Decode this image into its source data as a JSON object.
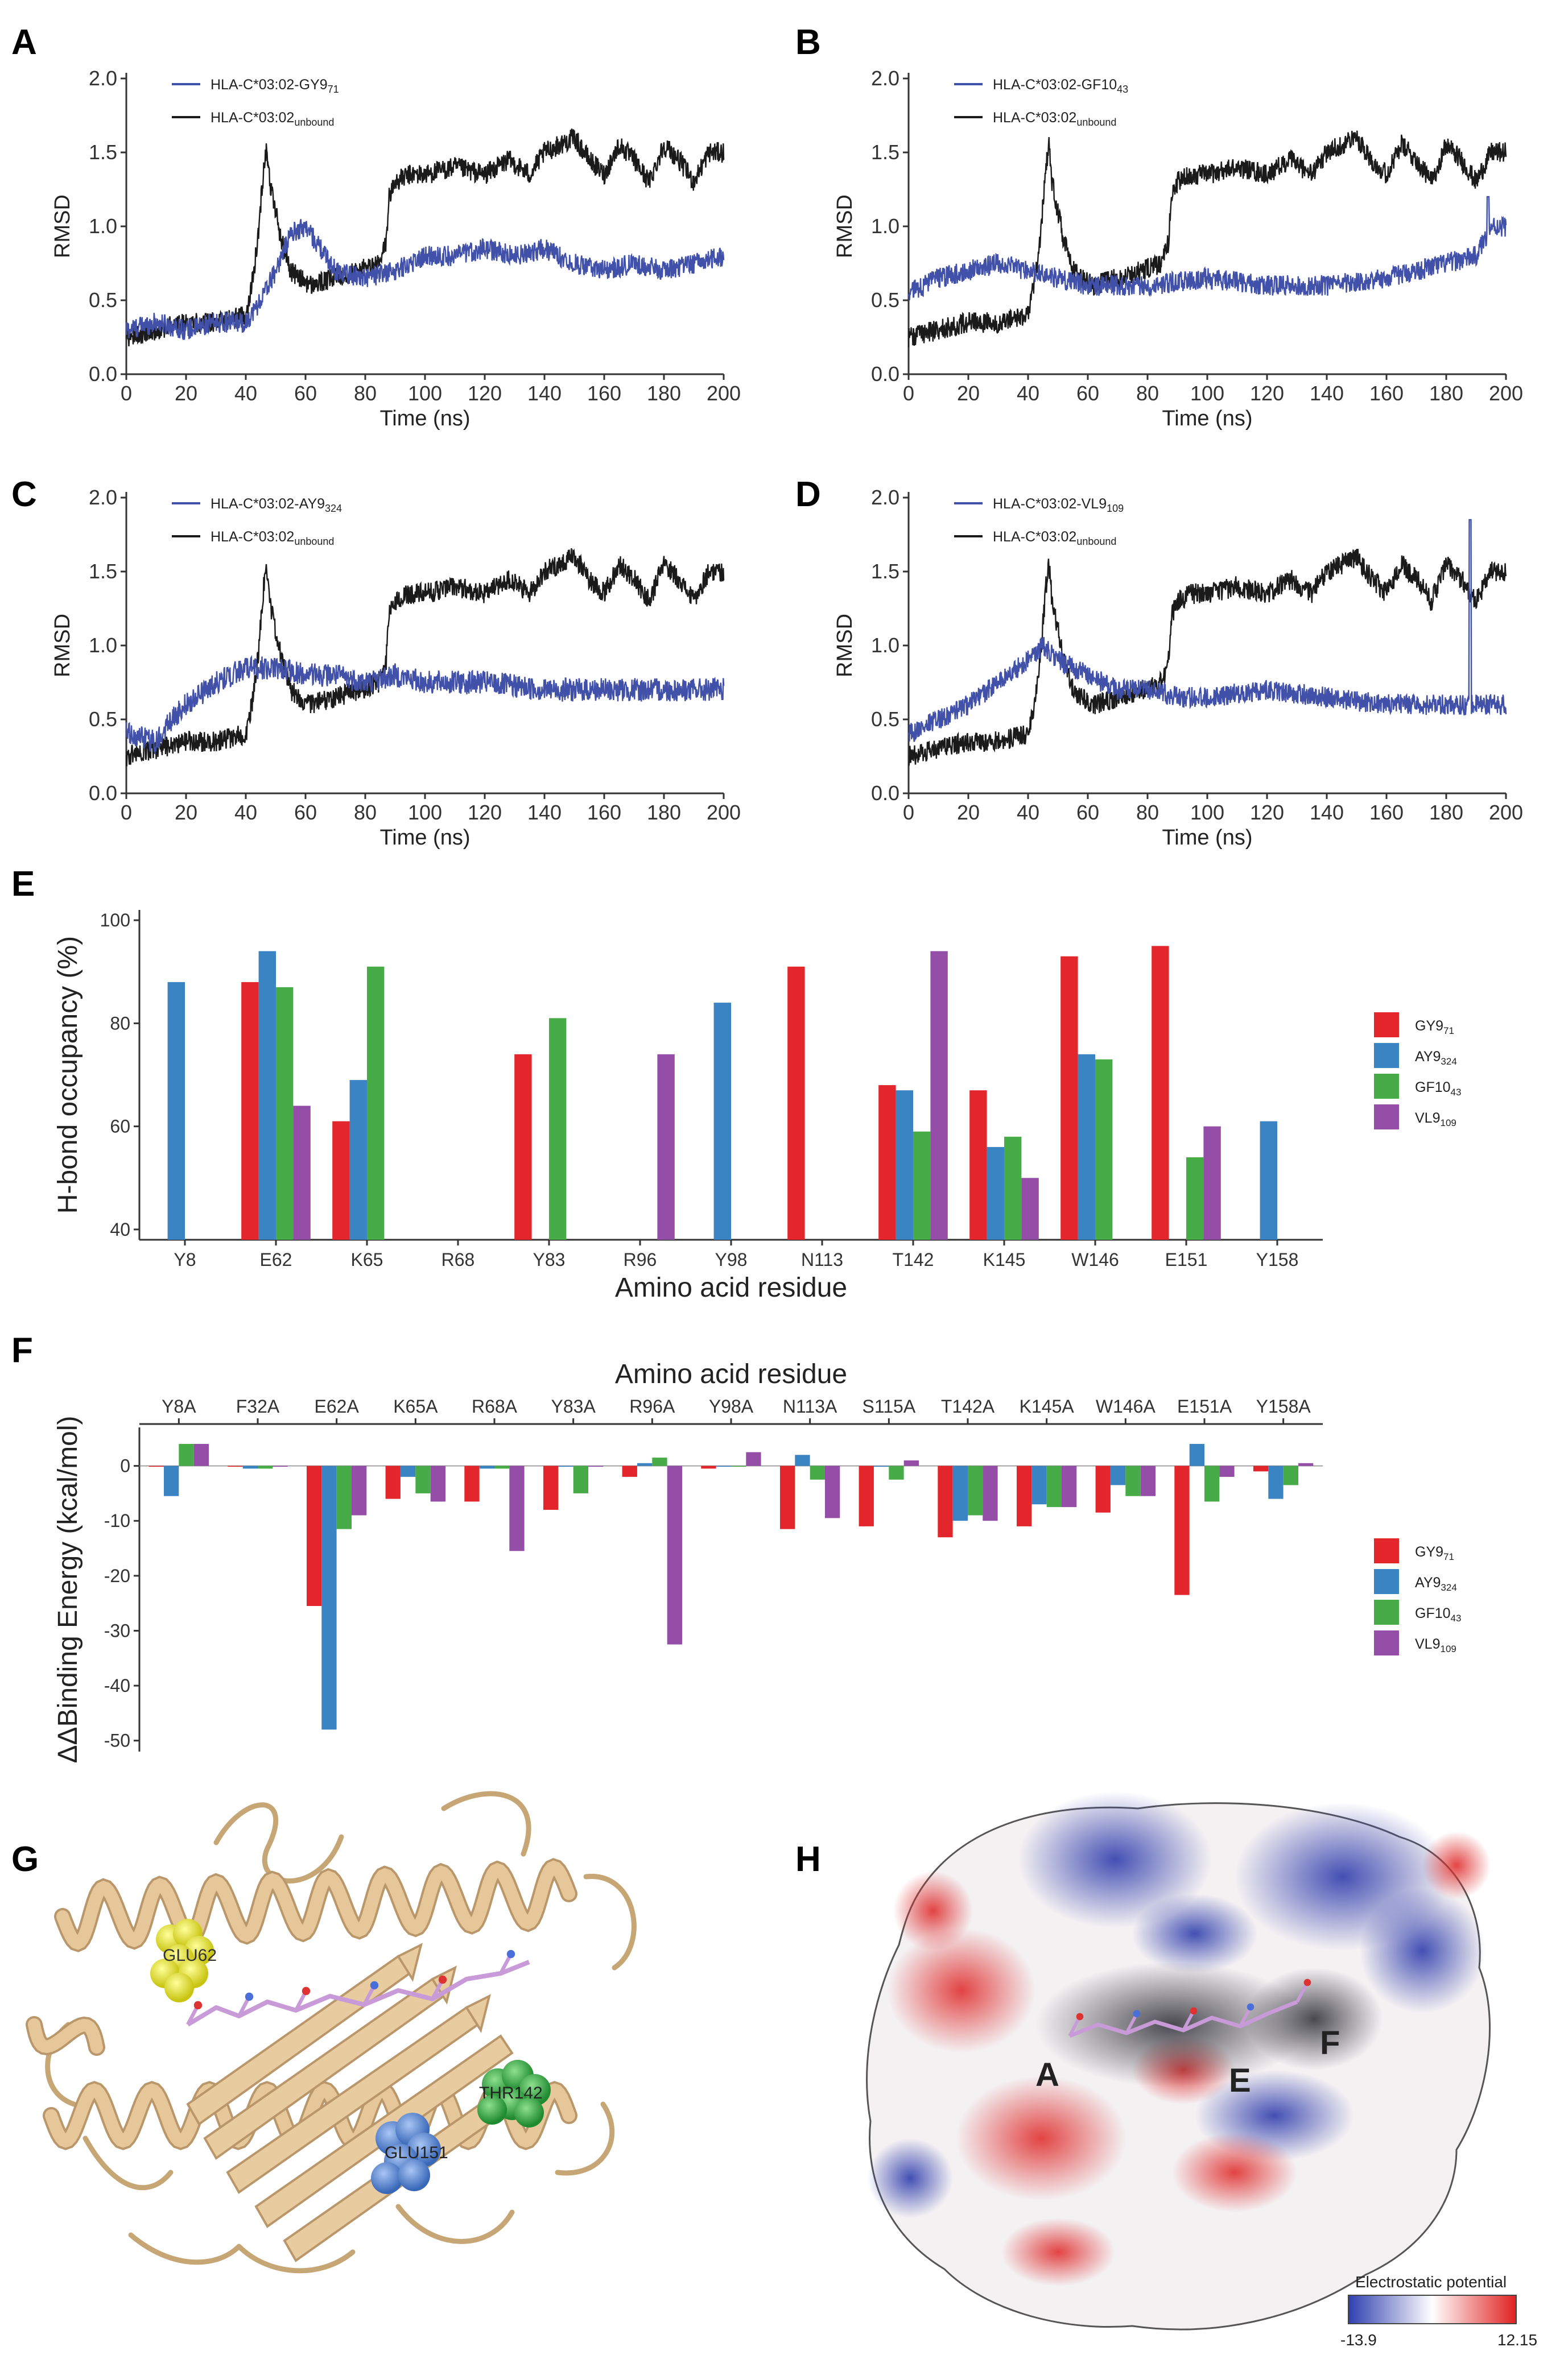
{
  "figure": {
    "panel_letters": [
      "A",
      "B",
      "C",
      "D",
      "E",
      "F",
      "G",
      "H"
    ]
  },
  "colors": {
    "bound": "#4150a8",
    "unbound": "#1a1a1a",
    "GY9": "#e3262b",
    "AY9": "#3a84c4",
    "GF10": "#47ab47",
    "VL9": "#944ea8",
    "ribbon": "#e6c79a",
    "peptide": "#c99ad8",
    "glu62": "#f2ee22",
    "glu151": "#5c8fd8",
    "thr142": "#36a84a"
  },
  "rmsd_panels": [
    {
      "letter": "A",
      "type": "line",
      "legend_bound": {
        "base": "HLA-C*03:02-GY9",
        "sub": "71"
      },
      "legend_unbound": {
        "base": "HLA-C*03:02",
        "sub": "unbound"
      },
      "ylabel": "RMSD",
      "xlabel": "Time (ns)",
      "xlim": [
        0,
        200
      ],
      "ylim": [
        0,
        2.0
      ],
      "xticks": [
        "0",
        "20",
        "40",
        "60",
        "80",
        "100",
        "120",
        "140",
        "160",
        "180",
        "200"
      ],
      "yticks": [
        "0.0",
        "0.5",
        "1.0",
        "1.5",
        "2.0"
      ],
      "bound_profile": [
        [
          0,
          0.3
        ],
        [
          10,
          0.35
        ],
        [
          20,
          0.3
        ],
        [
          30,
          0.35
        ],
        [
          40,
          0.35
        ],
        [
          45,
          0.5
        ],
        [
          50,
          0.7
        ],
        [
          55,
          0.95
        ],
        [
          60,
          1.0
        ],
        [
          65,
          0.85
        ],
        [
          70,
          0.7
        ],
        [
          80,
          0.65
        ],
        [
          90,
          0.7
        ],
        [
          100,
          0.8
        ],
        [
          110,
          0.8
        ],
        [
          120,
          0.85
        ],
        [
          130,
          0.8
        ],
        [
          140,
          0.85
        ],
        [
          150,
          0.75
        ],
        [
          160,
          0.7
        ],
        [
          170,
          0.75
        ],
        [
          180,
          0.7
        ],
        [
          190,
          0.75
        ],
        [
          200,
          0.8
        ]
      ],
      "bound_noise": 0.07,
      "bound_spikes": []
    },
    {
      "letter": "B",
      "type": "line",
      "legend_bound": {
        "base": "HLA-C*03:02-GF10",
        "sub": "43"
      },
      "legend_unbound": {
        "base": "HLA-C*03:02",
        "sub": "unbound"
      },
      "ylabel": "RMSD",
      "xlabel": "Time (ns)",
      "xlim": [
        0,
        200
      ],
      "ylim": [
        0,
        2.0
      ],
      "xticks": [
        "0",
        "20",
        "40",
        "60",
        "80",
        "100",
        "120",
        "140",
        "160",
        "180",
        "200"
      ],
      "yticks": [
        "0.0",
        "0.5",
        "1.0",
        "1.5",
        "2.0"
      ],
      "bound_profile": [
        [
          0,
          0.55
        ],
        [
          10,
          0.65
        ],
        [
          20,
          0.7
        ],
        [
          30,
          0.75
        ],
        [
          40,
          0.7
        ],
        [
          50,
          0.65
        ],
        [
          60,
          0.6
        ],
        [
          80,
          0.6
        ],
        [
          100,
          0.65
        ],
        [
          120,
          0.6
        ],
        [
          140,
          0.6
        ],
        [
          160,
          0.65
        ],
        [
          180,
          0.75
        ],
        [
          190,
          0.8
        ],
        [
          195,
          1.0
        ],
        [
          200,
          1.0
        ]
      ],
      "bound_noise": 0.07,
      "bound_spikes": [
        [
          194,
          1.2
        ]
      ]
    },
    {
      "letter": "C",
      "type": "line",
      "legend_bound": {
        "base": "HLA-C*03:02-AY9",
        "sub": "324"
      },
      "legend_unbound": {
        "base": "HLA-C*03:02",
        "sub": "unbound"
      },
      "ylabel": "RMSD",
      "xlabel": "Time (ns)",
      "xlim": [
        0,
        200
      ],
      "ylim": [
        0,
        2.0
      ],
      "xticks": [
        "0",
        "20",
        "40",
        "60",
        "80",
        "100",
        "120",
        "140",
        "160",
        "180",
        "200"
      ],
      "yticks": [
        "0.0",
        "0.5",
        "1.0",
        "1.5",
        "2.0"
      ],
      "bound_profile": [
        [
          0,
          0.4
        ],
        [
          10,
          0.35
        ],
        [
          15,
          0.5
        ],
        [
          20,
          0.6
        ],
        [
          30,
          0.75
        ],
        [
          40,
          0.85
        ],
        [
          50,
          0.85
        ],
        [
          60,
          0.8
        ],
        [
          70,
          0.8
        ],
        [
          80,
          0.75
        ],
        [
          90,
          0.8
        ],
        [
          100,
          0.75
        ],
        [
          120,
          0.75
        ],
        [
          140,
          0.7
        ],
        [
          160,
          0.7
        ],
        [
          180,
          0.7
        ],
        [
          200,
          0.7
        ]
      ],
      "bound_noise": 0.08,
      "bound_spikes": []
    },
    {
      "letter": "D",
      "type": "line",
      "legend_bound": {
        "base": "HLA-C*03:02-VL9",
        "sub": "109"
      },
      "legend_unbound": {
        "base": "HLA-C*03:02",
        "sub": "unbound"
      },
      "ylabel": "RMSD",
      "xlabel": "Time (ns)",
      "xlim": [
        0,
        200
      ],
      "ylim": [
        0,
        2.0
      ],
      "xticks": [
        "0",
        "20",
        "40",
        "60",
        "80",
        "100",
        "120",
        "140",
        "160",
        "180",
        "200"
      ],
      "yticks": [
        "0.0",
        "0.5",
        "1.0",
        "1.5",
        "2.0"
      ],
      "bound_profile": [
        [
          0,
          0.4
        ],
        [
          10,
          0.5
        ],
        [
          20,
          0.6
        ],
        [
          30,
          0.75
        ],
        [
          40,
          0.9
        ],
        [
          45,
          1.0
        ],
        [
          50,
          0.9
        ],
        [
          60,
          0.8
        ],
        [
          70,
          0.7
        ],
        [
          80,
          0.7
        ],
        [
          90,
          0.65
        ],
        [
          100,
          0.65
        ],
        [
          120,
          0.7
        ],
        [
          140,
          0.65
        ],
        [
          160,
          0.6
        ],
        [
          180,
          0.6
        ],
        [
          200,
          0.6
        ]
      ],
      "bound_noise": 0.07,
      "bound_spikes": [
        [
          188,
          1.85
        ]
      ]
    }
  ],
  "unbound_profile": [
    [
      0,
      0.25
    ],
    [
      10,
      0.3
    ],
    [
      20,
      0.35
    ],
    [
      30,
      0.35
    ],
    [
      40,
      0.4
    ],
    [
      42,
      0.6
    ],
    [
      44,
      0.9
    ],
    [
      46,
      1.4
    ],
    [
      47,
      1.55
    ],
    [
      48,
      1.3
    ],
    [
      50,
      1.1
    ],
    [
      52,
      0.9
    ],
    [
      55,
      0.7
    ],
    [
      58,
      0.65
    ],
    [
      62,
      0.6
    ],
    [
      70,
      0.65
    ],
    [
      78,
      0.7
    ],
    [
      85,
      0.75
    ],
    [
      87,
      0.9
    ],
    [
      88,
      1.2
    ],
    [
      90,
      1.3
    ],
    [
      95,
      1.35
    ],
    [
      100,
      1.35
    ],
    [
      110,
      1.4
    ],
    [
      120,
      1.35
    ],
    [
      128,
      1.45
    ],
    [
      135,
      1.35
    ],
    [
      140,
      1.5
    ],
    [
      145,
      1.55
    ],
    [
      150,
      1.6
    ],
    [
      155,
      1.45
    ],
    [
      160,
      1.35
    ],
    [
      165,
      1.55
    ],
    [
      170,
      1.45
    ],
    [
      175,
      1.3
    ],
    [
      180,
      1.55
    ],
    [
      185,
      1.45
    ],
    [
      190,
      1.3
    ],
    [
      195,
      1.5
    ],
    [
      200,
      1.5
    ]
  ],
  "chart_data": [
    {
      "type": "bar",
      "panel": "E",
      "ylabel": "H-bond occupancy (%)",
      "xlabel": "Amino acid residue",
      "ylim": [
        38,
        102
      ],
      "yticks": [
        "40",
        "60",
        "80",
        "100"
      ],
      "categories": [
        "Y8",
        "E62",
        "K65",
        "R68",
        "Y83",
        "R96",
        "Y98",
        "N113",
        "T142",
        "K145",
        "W146",
        "E151",
        "Y158"
      ],
      "series": [
        {
          "name": "GY9",
          "sub": "71",
          "values": [
            null,
            88,
            61,
            null,
            74,
            null,
            null,
            91,
            68,
            67,
            93,
            95,
            null
          ]
        },
        {
          "name": "AY9",
          "sub": "324",
          "values": [
            88,
            94,
            69,
            null,
            null,
            null,
            84,
            null,
            67,
            56,
            74,
            null,
            61
          ]
        },
        {
          "name": "GF10",
          "sub": "43",
          "values": [
            null,
            87,
            91,
            null,
            81,
            null,
            null,
            null,
            59,
            58,
            73,
            54,
            null
          ]
        },
        {
          "name": "VL9",
          "sub": "109",
          "values": [
            null,
            64,
            null,
            null,
            null,
            74,
            null,
            null,
            94,
            50,
            null,
            60,
            null
          ]
        }
      ]
    },
    {
      "type": "bar",
      "panel": "F",
      "ylabel": "ΔΔBinding Energy (kcal/mol)",
      "xlabel": "Amino acid residue",
      "ylim": [
        -52,
        7
      ],
      "yticks": [
        "0",
        "-10",
        "-20",
        "-30",
        "-40",
        "-50"
      ],
      "categories": [
        "Y8A",
        "F32A",
        "E62A",
        "K65A",
        "R68A",
        "Y83A",
        "R96A",
        "Y98A",
        "N113A",
        "S115A",
        "T142A",
        "K145A",
        "W146A",
        "E151A",
        "Y158A"
      ],
      "series": [
        {
          "name": "GY9",
          "sub": "71",
          "values": [
            0.0,
            0.0,
            -25.5,
            -6.0,
            -6.5,
            -8.0,
            -2.0,
            -0.5,
            -11.5,
            -11.0,
            -13.0,
            -11.0,
            -8.5,
            -23.5,
            -1.0
          ]
        },
        {
          "name": "AY9",
          "sub": "324",
          "values": [
            -5.5,
            -0.5,
            -48.0,
            -2.0,
            -0.5,
            0.0,
            0.5,
            0.0,
            2.0,
            0.0,
            -10.0,
            -7.0,
            -3.5,
            4.0,
            -6.0
          ]
        },
        {
          "name": "GF10",
          "sub": "43",
          "values": [
            4.0,
            -0.5,
            -11.5,
            -5.0,
            -0.5,
            -5.0,
            1.5,
            0.0,
            -2.5,
            -2.5,
            -9.0,
            -7.5,
            -5.5,
            -6.5,
            -3.5
          ]
        },
        {
          "name": "VL9",
          "sub": "109",
          "values": [
            4.0,
            0.0,
            -9.0,
            -6.5,
            -15.5,
            0.0,
            -32.5,
            2.5,
            -9.5,
            1.0,
            -10.0,
            -7.5,
            -5.5,
            -2.0,
            0.5
          ]
        }
      ]
    }
  ],
  "structure_g": {
    "labels": [
      "GLU62",
      "GLU151",
      "THR142"
    ]
  },
  "surface_h": {
    "pocket_labels": [
      "A",
      "E",
      "F"
    ],
    "colorbar_title": "Electrostatic potential",
    "colorbar_min": "-13.9",
    "colorbar_max": "12.15"
  }
}
